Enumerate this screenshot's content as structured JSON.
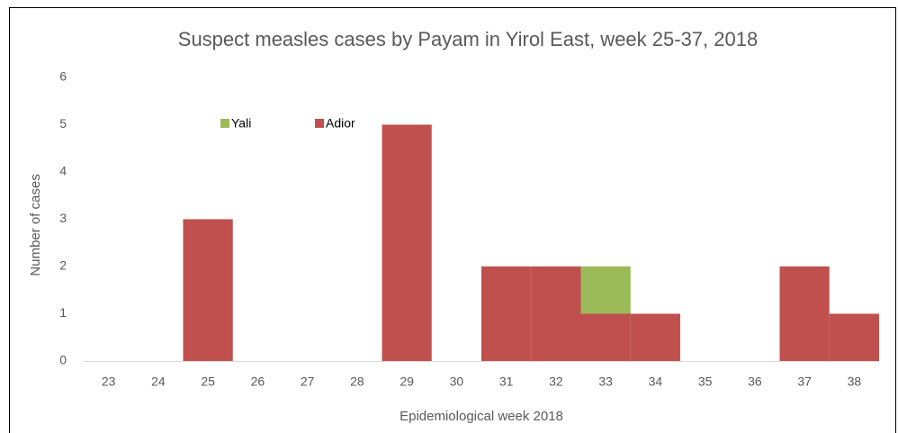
{
  "chart_data": {
    "type": "stacked_bar",
    "title": "Suspect measles cases by Payam in Yirol East, week 25-37, 2018",
    "x_label": "Epidemiological week 2018",
    "y_label": "Number of cases",
    "categories": [
      "23",
      "24",
      "25",
      "26",
      "27",
      "28",
      "29",
      "30",
      "31",
      "32",
      "33",
      "34",
      "35",
      "36",
      "37",
      "38"
    ],
    "series": [
      {
        "name": "Yali",
        "color": "#9bbb59",
        "values": [
          0,
          0,
          0,
          0,
          0,
          0,
          0,
          0,
          0,
          0,
          1,
          0,
          0,
          0,
          0,
          0
        ]
      },
      {
        "name": "Adior",
        "color": "#c0504d",
        "values": [
          0,
          0,
          3,
          0,
          0,
          0,
          5,
          0,
          2,
          2,
          1,
          1,
          0,
          0,
          2,
          1
        ]
      }
    ],
    "ylim": [
      0,
      6
    ],
    "yticks": [
      0,
      1,
      2,
      3,
      4,
      5,
      6
    ],
    "grid": false
  }
}
